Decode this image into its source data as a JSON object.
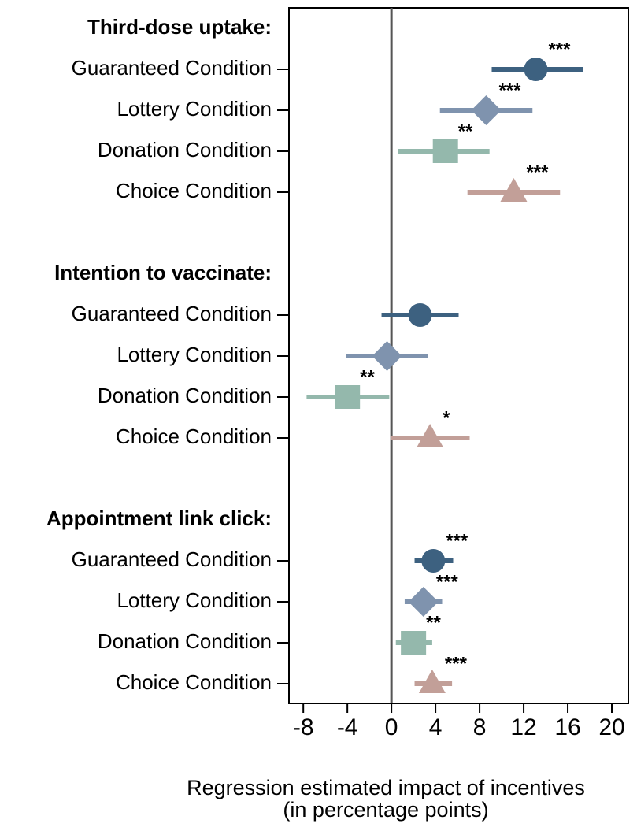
{
  "chart_data": {
    "type": "coefplot",
    "series": [
      {
        "name": "Guaranteed Condition",
        "color": "#3d6180",
        "marker": "circle"
      },
      {
        "name": "Lottery Condition",
        "color": "#7f93ae",
        "marker": "diamond"
      },
      {
        "name": "Donation Condition",
        "color": "#94b8ac",
        "marker": "square"
      },
      {
        "name": "Choice Condition",
        "color": "#c29f98",
        "marker": "triangle"
      }
    ],
    "groups": [
      {
        "title": "Third-dose uptake:",
        "values": [
          13.1,
          8.6,
          4.9,
          11.1
        ],
        "ci_low": [
          9.1,
          4.4,
          0.6,
          6.9
        ],
        "ci_high": [
          17.4,
          12.8,
          8.9,
          15.3
        ],
        "stars": [
          "***",
          "***",
          "**",
          "***"
        ]
      },
      {
        "title": "Intention to vaccinate:",
        "values": [
          2.6,
          -0.4,
          -4.0,
          3.5
        ],
        "ci_low": [
          -0.9,
          -4.1,
          -7.7,
          -0.1
        ],
        "ci_high": [
          6.1,
          3.3,
          -0.2,
          7.1
        ],
        "stars": [
          null,
          null,
          "**",
          "*"
        ]
      },
      {
        "title": "Appointment link click:",
        "values": [
          3.8,
          2.9,
          2.0,
          3.7
        ],
        "ci_low": [
          2.1,
          1.2,
          0.4,
          2.1
        ],
        "ci_high": [
          5.6,
          4.6,
          3.7,
          5.5
        ],
        "stars": [
          "***",
          "***",
          "**",
          "***"
        ]
      }
    ],
    "xlim": [
      -9.3,
      21.5
    ],
    "xticks": [
      -8,
      -4,
      0,
      4,
      8,
      12,
      16,
      20
    ],
    "xline": 0,
    "xlabel": [
      "Regression estimated impact of incentives",
      "(in percentage points)"
    ]
  }
}
